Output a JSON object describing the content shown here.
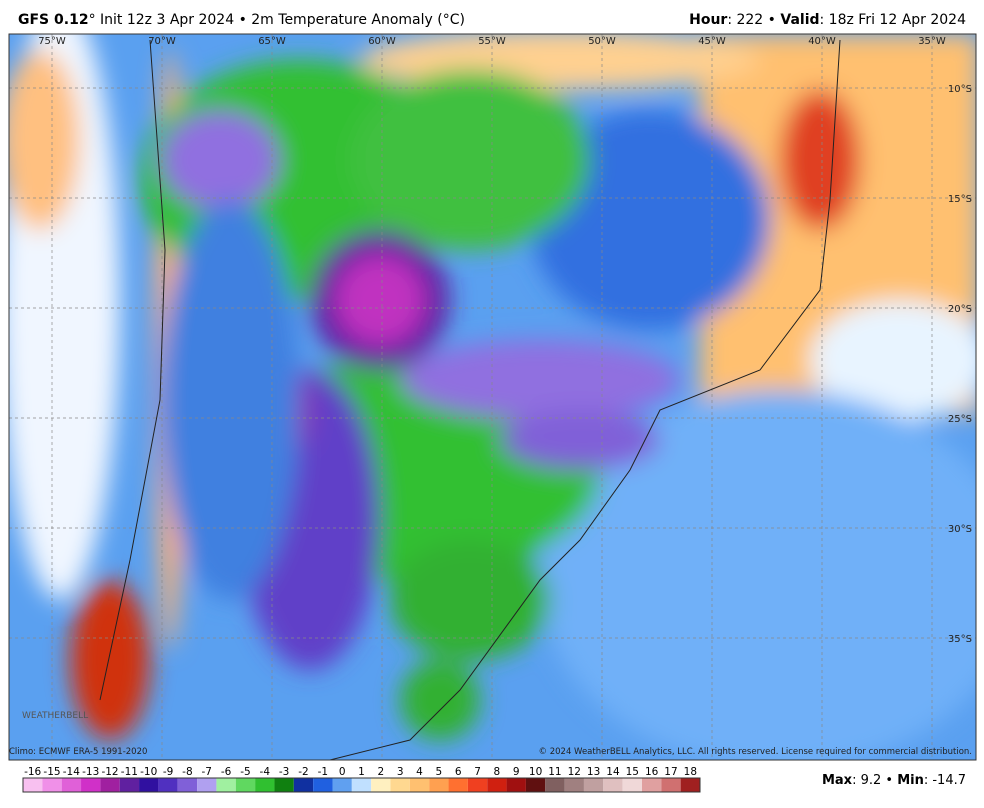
{
  "header": {
    "left": [
      "GFS 0.12",
      "° Init 12z 3 Apr 2024 • 2m Temperature Anomaly (°C)"
    ],
    "right": [
      "Hour",
      ": 222 • ",
      "Valid",
      ": 18z Fri 12 Apr 2024"
    ]
  },
  "map": {
    "lon_labels": [
      "75°W",
      "70°W",
      "65°W",
      "60°W",
      "55°W",
      "50°W",
      "45°W",
      "40°W",
      "35°W"
    ],
    "lat_labels": [
      "10°S",
      "15°S",
      "20°S",
      "25°S",
      "30°S",
      "35°S"
    ],
    "logo": "WEATHERBELL"
  },
  "footer": {
    "climo": "Climo: ECMWF ERA-5 1991-2020",
    "copyright": "© 2024 WeatherBELL Analytics, LLC. All rights reserved. License required for commercial distribution.",
    "stats": [
      "Max",
      ": 9.2 • ",
      "Min",
      ": -14.7"
    ]
  },
  "colorbar": {
    "labels": [
      -16,
      -15,
      -14,
      -13,
      -12,
      -11,
      -10,
      -9,
      -8,
      -7,
      -6,
      -5,
      -4,
      -3,
      -2,
      -1,
      0,
      1,
      2,
      3,
      4,
      5,
      6,
      7,
      8,
      9,
      10,
      11,
      12,
      13,
      14,
      15,
      16,
      17,
      18
    ],
    "colors": [
      "#f8c0f0",
      "#f090e8",
      "#e060d8",
      "#d030c8",
      "#a020a0",
      "#6020a0",
      "#3010a0",
      "#5030c0",
      "#8060d8",
      "#b0a0f0",
      "#a0f0a0",
      "#60d860",
      "#30c030",
      "#108010",
      "#1030a0",
      "#2060e0",
      "#60a0f0",
      "#c0e0ff",
      "#fff0c0",
      "#ffd890",
      "#ffc070",
      "#ffa050",
      "#ff7030",
      "#f04020",
      "#d02010",
      "#a01010",
      "#601010",
      "#806060",
      "#a08080",
      "#c0a0a0",
      "#e0c0c0",
      "#f0d8d8",
      "#e0a0a0",
      "#d07070",
      "#a02020"
    ]
  }
}
